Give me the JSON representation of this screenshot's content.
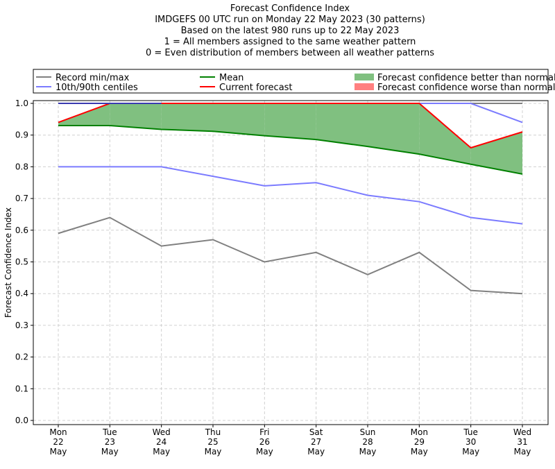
{
  "chart_data": {
    "type": "line",
    "title_lines": [
      "Forecast Confidence Index",
      "IMDGEFS 00 UTC run on Monday 22 May 2023 (30 patterns)",
      "Based on the latest 980 runs up to 22 May 2023",
      "1 = All members assigned to the same weather pattern",
      "0 = Even distribution of members between all weather patterns"
    ],
    "ylabel": "Forecast Confidence Index",
    "xlabel": "",
    "ylim": [
      0,
      1
    ],
    "yticks": [
      "0.0",
      "0.1",
      "0.2",
      "0.3",
      "0.4",
      "0.5",
      "0.6",
      "0.7",
      "0.8",
      "0.9",
      "1.0"
    ],
    "categories": [
      [
        "Mon",
        "22",
        "May"
      ],
      [
        "Tue",
        "23",
        "May"
      ],
      [
        "Wed",
        "24",
        "May"
      ],
      [
        "Thu",
        "25",
        "May"
      ],
      [
        "Fri",
        "26",
        "May"
      ],
      [
        "Sat",
        "27",
        "May"
      ],
      [
        "Sun",
        "28",
        "May"
      ],
      [
        "Mon",
        "29",
        "May"
      ],
      [
        "Tue",
        "30",
        "May"
      ],
      [
        "Wed",
        "31",
        "May"
      ]
    ],
    "grid": true,
    "legend_position": "top",
    "legend": [
      {
        "label": "Record min/max",
        "color": "#808080",
        "kind": "line"
      },
      {
        "label": "Mean",
        "color": "#008000",
        "kind": "line"
      },
      {
        "label": "Forecast confidence better than normal",
        "color": "#80c080",
        "kind": "patch"
      },
      {
        "label": "10th/90th centiles",
        "color": "#7b7bff",
        "kind": "line"
      },
      {
        "label": "Current forecast",
        "color": "#ff0000",
        "kind": "line"
      },
      {
        "label": "Forecast confidence worse than normal",
        "color": "#ff8080",
        "kind": "patch"
      }
    ],
    "series": [
      {
        "name": "Record max",
        "color": "#808080",
        "values": [
          1,
          1,
          1,
          1,
          1,
          1,
          1,
          1,
          1,
          1
        ]
      },
      {
        "name": "Record min",
        "color": "#808080",
        "values": [
          0.59,
          0.64,
          0.55,
          0.57,
          0.5,
          0.53,
          0.46,
          0.53,
          0.41,
          0.4
        ]
      },
      {
        "name": "90th centile",
        "color": "#7b7bff",
        "values": [
          1,
          1,
          1,
          1,
          1,
          1,
          1,
          1,
          1,
          0.94
        ]
      },
      {
        "name": "10th centile",
        "color": "#7b7bff",
        "values": [
          0.8,
          0.8,
          0.8,
          0.77,
          0.74,
          0.75,
          0.71,
          0.69,
          0.64,
          0.62
        ]
      },
      {
        "name": "Mean",
        "color": "#008000",
        "values": [
          0.93,
          0.93,
          0.918,
          0.912,
          0.898,
          0.886,
          0.864,
          0.84,
          0.808,
          0.777
        ]
      },
      {
        "name": "Current forecast",
        "color": "#ff0000",
        "values": [
          0.94,
          1,
          1,
          1,
          1,
          1,
          1,
          1,
          0.86,
          0.91
        ]
      }
    ]
  }
}
